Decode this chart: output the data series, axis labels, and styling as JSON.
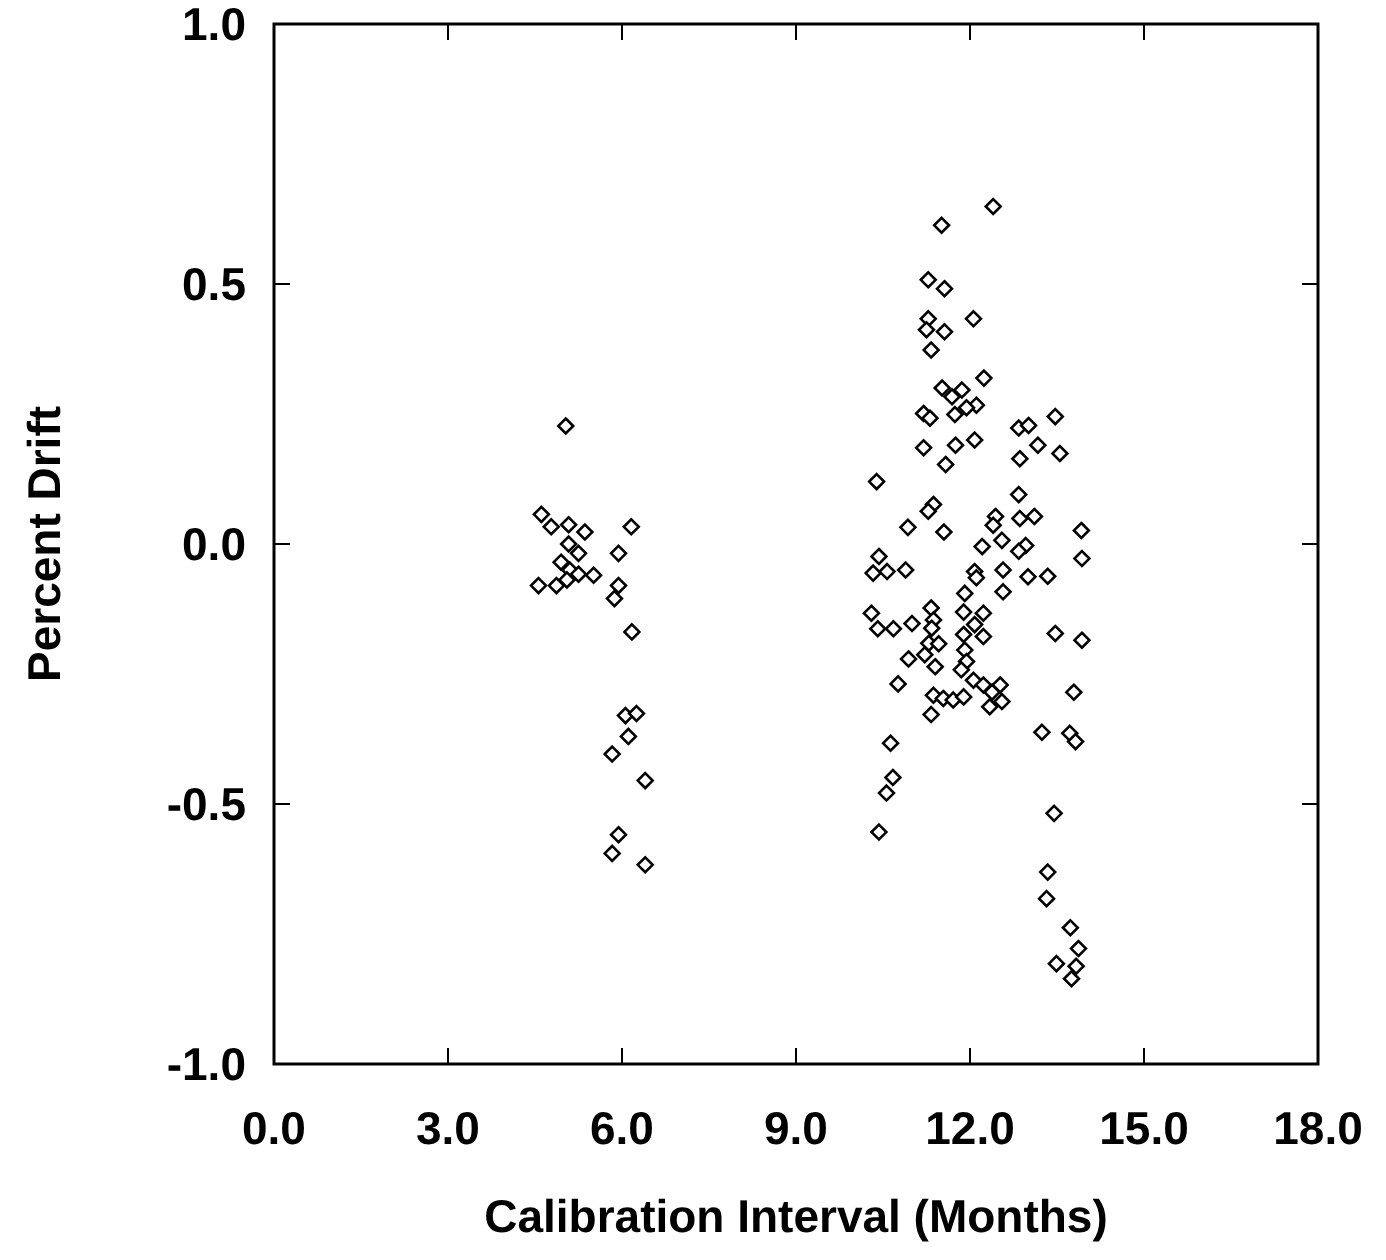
{
  "chart_data": {
    "type": "scatter",
    "xlabel": "Calibration Interval (Months)",
    "ylabel": "Percent Drift",
    "xlim": [
      0,
      18
    ],
    "ylim": [
      -1,
      1
    ],
    "xticks": [
      {
        "value": 0,
        "label": "0.0"
      },
      {
        "value": 3,
        "label": "3.0"
      },
      {
        "value": 6,
        "label": "6.0"
      },
      {
        "value": 9,
        "label": "9.0"
      },
      {
        "value": 12,
        "label": "12.0"
      },
      {
        "value": 15,
        "label": "15.0"
      },
      {
        "value": 18,
        "label": "18.0"
      }
    ],
    "yticks": [
      {
        "value": -1,
        "label": "-1.0"
      },
      {
        "value": -0.5,
        "label": "-0.5"
      },
      {
        "value": 0,
        "label": "0.0"
      },
      {
        "value": 0.5,
        "label": "0.5"
      },
      {
        "value": 1,
        "label": "1.0"
      }
    ],
    "grid": false,
    "marker": "diamond",
    "series": [
      {
        "color": "#000000",
        "x": [
          4.61,
          4.78,
          5.08,
          5.36,
          6.16,
          5.08,
          5.25,
          5.94,
          4.95,
          5.1,
          5.25,
          5.51,
          5.05,
          4.87,
          4.56,
          5.94,
          5.87,
          6.17,
          6.06,
          6.25,
          6.11,
          5.83,
          6.4,
          5.94,
          5.83,
          6.4,
          5.03,
          12.4,
          11.51,
          11.28,
          11.56,
          11.28,
          11.25,
          11.56,
          12.06,
          11.33,
          12.24,
          11.52,
          11.86,
          11.69,
          12.11,
          11.94,
          11.74,
          11.2,
          11.31,
          13.47,
          12.84,
          13.01,
          11.2,
          11.75,
          12.08,
          13.17,
          13.55,
          12.86,
          11.58,
          10.39,
          12.84,
          11.37,
          11.28,
          12.44,
          12.86,
          13.11,
          10.93,
          12.4,
          11.55,
          13.92,
          12.55,
          12.21,
          12.96,
          12.84,
          10.43,
          13.93,
          10.33,
          10.57,
          10.89,
          12.08,
          12.57,
          12.11,
          13.0,
          13.34,
          11.91,
          12.57,
          10.3,
          11.33,
          11.89,
          12.23,
          10.41,
          10.68,
          11.0,
          11.37,
          11.34,
          11.89,
          12.08,
          12.23,
          13.47,
          13.93,
          11.29,
          11.46,
          11.22,
          11.91,
          10.94,
          11.94,
          11.4,
          11.85,
          12.06,
          12.23,
          12.52,
          10.76,
          12.38,
          11.37,
          11.54,
          11.71,
          11.89,
          12.55,
          12.34,
          11.33,
          13.79,
          13.24,
          13.72,
          13.82,
          10.63,
          10.67,
          10.56,
          10.43,
          13.45,
          13.34,
          13.32,
          13.73,
          13.87,
          13.49,
          13.83,
          13.75
        ],
        "values": [
          0.057,
          0.033,
          0.037,
          0.023,
          0.033,
          0.0,
          -0.018,
          -0.018,
          -0.035,
          -0.05,
          -0.058,
          -0.06,
          -0.069,
          -0.08,
          -0.08,
          -0.08,
          -0.105,
          -0.169,
          -0.33,
          -0.326,
          -0.37,
          -0.404,
          -0.455,
          -0.559,
          -0.595,
          -0.617,
          0.227,
          0.649,
          0.613,
          0.508,
          0.491,
          0.433,
          0.412,
          0.408,
          0.433,
          0.373,
          0.319,
          0.3,
          0.296,
          0.283,
          0.267,
          0.262,
          0.249,
          0.251,
          0.242,
          0.245,
          0.223,
          0.228,
          0.185,
          0.19,
          0.2,
          0.19,
          0.174,
          0.164,
          0.153,
          0.12,
          0.095,
          0.076,
          0.063,
          0.053,
          0.049,
          0.053,
          0.032,
          0.036,
          0.023,
          0.026,
          0.007,
          -0.005,
          -0.003,
          -0.014,
          -0.024,
          -0.028,
          -0.056,
          -0.053,
          -0.05,
          -0.053,
          -0.05,
          -0.065,
          -0.063,
          -0.062,
          -0.095,
          -0.092,
          -0.133,
          -0.123,
          -0.131,
          -0.133,
          -0.163,
          -0.163,
          -0.153,
          -0.146,
          -0.162,
          -0.174,
          -0.155,
          -0.178,
          -0.172,
          -0.185,
          -0.191,
          -0.192,
          -0.213,
          -0.204,
          -0.221,
          -0.226,
          -0.236,
          -0.242,
          -0.262,
          -0.271,
          -0.271,
          -0.269,
          -0.285,
          -0.291,
          -0.297,
          -0.3,
          -0.294,
          -0.303,
          -0.313,
          -0.328,
          -0.285,
          -0.362,
          -0.364,
          -0.38,
          -0.383,
          -0.449,
          -0.479,
          -0.554,
          -0.518,
          -0.631,
          -0.682,
          -0.738,
          -0.778,
          -0.807,
          -0.812,
          -0.836
        ]
      }
    ]
  }
}
